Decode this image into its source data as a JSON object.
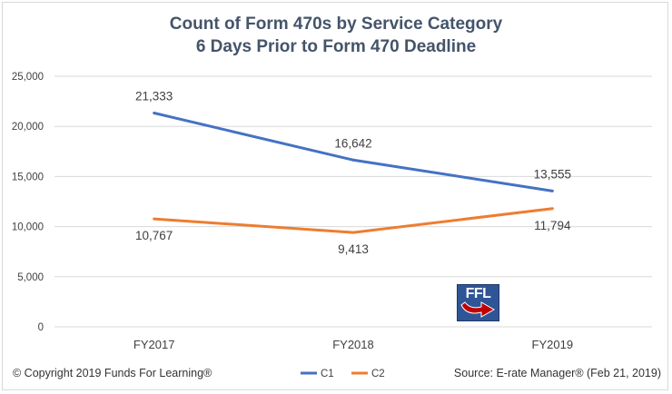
{
  "chart_data": {
    "type": "line",
    "title": "Count of Form 470s by Service Category",
    "subtitle": "6 Days Prior to Form 470 Deadline",
    "categories": [
      "FY2017",
      "FY2018",
      "FY2019"
    ],
    "series": [
      {
        "name": "C1",
        "values": [
          21333,
          16642,
          13555
        ],
        "labels": [
          "21,333",
          "16,642",
          "13,555"
        ],
        "color": "#4472c4"
      },
      {
        "name": "C2",
        "values": [
          10767,
          9413,
          11794
        ],
        "labels": [
          "10,767",
          "9,413",
          "11,794"
        ],
        "color": "#ed7d31"
      }
    ],
    "yticks": [
      "0",
      "5,000",
      "10,000",
      "15,000",
      "20,000",
      "25,000"
    ],
    "ylim": [
      0,
      25000
    ],
    "grid": true,
    "legend_position": "bottom"
  },
  "footer": {
    "copyright": "© Copyright 2019 Funds For Learning®",
    "source": "Source: E-rate Manager®  (Feb 21, 2019)"
  },
  "logo": {
    "text": "FFL"
  }
}
